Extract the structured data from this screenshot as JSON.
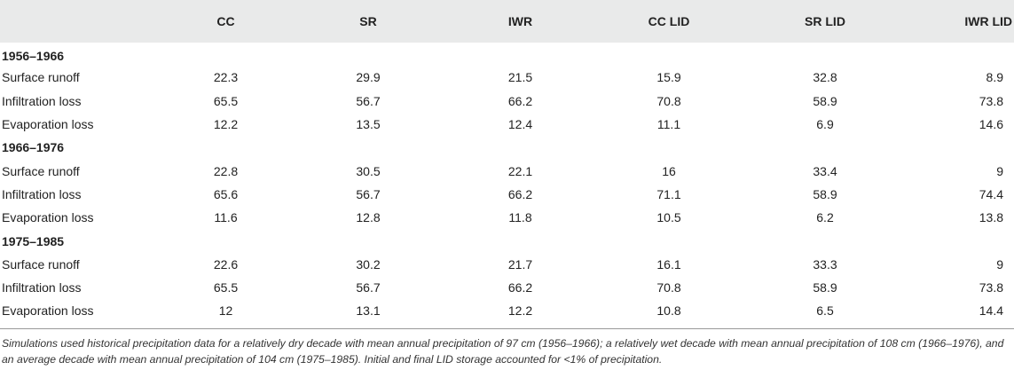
{
  "table": {
    "columns": [
      "",
      "CC",
      "SR",
      "IWR",
      "CC LID",
      "SR LID",
      "IWR LID"
    ],
    "groups": [
      {
        "title": "1956–1966",
        "rows": [
          {
            "label": "Surface runoff",
            "values": [
              "22.3",
              "29.9",
              "21.5",
              "15.9",
              "32.8",
              "8.9"
            ]
          },
          {
            "label": "Infiltration loss",
            "values": [
              "65.5",
              "56.7",
              "66.2",
              "70.8",
              "58.9",
              "73.8"
            ]
          },
          {
            "label": "Evaporation loss",
            "values": [
              "12.2",
              "13.5",
              "12.4",
              "11.1",
              "6.9",
              "14.6"
            ]
          }
        ]
      },
      {
        "title": "1966–1976",
        "rows": [
          {
            "label": "Surface runoff",
            "values": [
              "22.8",
              "30.5",
              "22.1",
              "16",
              "33.4",
              "9"
            ]
          },
          {
            "label": "Infiltration loss",
            "values": [
              "65.6",
              "56.7",
              "66.2",
              "71.1",
              "58.9",
              "74.4"
            ]
          },
          {
            "label": "Evaporation loss",
            "values": [
              "11.6",
              "12.8",
              "11.8",
              "10.5",
              "6.2",
              "13.8"
            ]
          }
        ]
      },
      {
        "title": "1975–1985",
        "rows": [
          {
            "label": "Surface runoff",
            "values": [
              "22.6",
              "30.2",
              "21.7",
              "16.1",
              "33.3",
              "9"
            ]
          },
          {
            "label": "Infiltration loss",
            "values": [
              "65.5",
              "56.7",
              "66.2",
              "70.8",
              "58.9",
              "73.8"
            ]
          },
          {
            "label": "Evaporation loss",
            "values": [
              "12",
              "13.1",
              "12.2",
              "10.8",
              "6.5",
              "14.4"
            ]
          }
        ]
      }
    ]
  },
  "footnote": "Simulations used historical precipitation data for a relatively dry decade with mean annual precipitation of 97 cm (1956–1966); a relatively wet decade with mean annual precipitation of 108 cm (1966–1976), and an average decade with mean annual precipitation of 104 cm (1975–1985). Initial and final LID storage accounted for <1% of precipitation."
}
